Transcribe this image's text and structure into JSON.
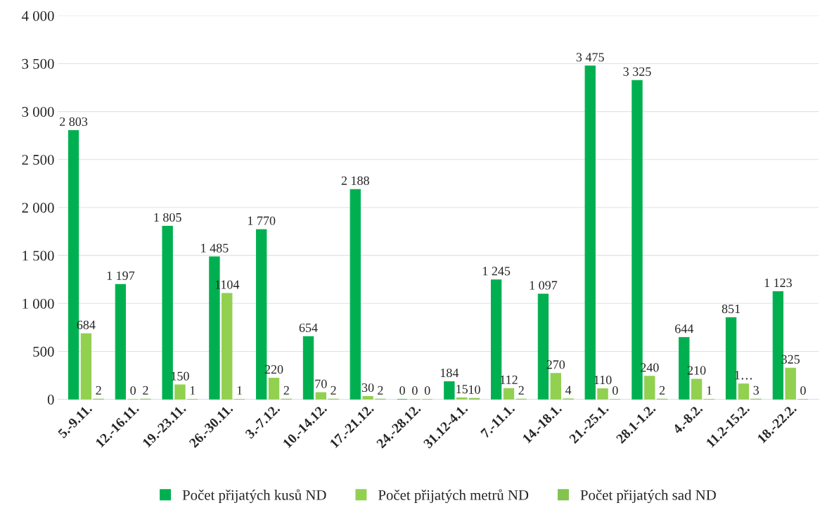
{
  "chart_data": {
    "type": "bar",
    "categories": [
      "5.-9.11.",
      "12.-16.11.",
      "19.-23.11.",
      "26.-30.11.",
      "3.-7.12.",
      "10.-14.12.",
      "17.-21.12.",
      "24.-28.12.",
      "31.12-4.1.",
      "7.-11.1.",
      "14.-18.1.",
      "21.-25.1.",
      "28.1-1.2.",
      "4.-8.2.",
      "11.2-15.2.",
      "18.-22.2."
    ],
    "series": [
      {
        "name": "Počet přijatých kusů ND",
        "color": "#00b050",
        "values": [
          2803,
          1197,
          1805,
          1485,
          1770,
          654,
          2188,
          0,
          184,
          1245,
          1097,
          3475,
          3325,
          644,
          851,
          1123
        ],
        "value_labels": [
          "2 803",
          "1 197",
          "1 805",
          "1 485",
          "1 770",
          "654",
          "2 188",
          "0",
          "184",
          "1 245",
          "1 097",
          "3 475",
          "3 325",
          "644",
          "851",
          "1 123"
        ]
      },
      {
        "name": "Počet přijatých metrů ND",
        "color": "#92d050",
        "values": [
          684,
          0,
          150,
          1104,
          220,
          70,
          30,
          0,
          15,
          112,
          270,
          110,
          240,
          210,
          160,
          325
        ],
        "value_labels": [
          "684",
          "0",
          "150",
          "1104",
          "220",
          "70",
          "30",
          "0",
          "15",
          "112",
          "270",
          "110",
          "240",
          "210",
          "1…",
          "325"
        ]
      },
      {
        "name": "Počet přijatých sad ND",
        "color": "#84c350",
        "values": [
          2,
          2,
          1,
          1,
          2,
          2,
          2,
          0,
          10,
          2,
          4,
          0,
          2,
          1,
          3,
          0
        ],
        "value_labels": [
          "2",
          "2",
          "1",
          "1",
          "2",
          "2",
          "2",
          "0",
          "10",
          "2",
          "4",
          "0",
          "2",
          "1",
          "3",
          "0"
        ]
      }
    ],
    "ylim": [
      0,
      4000
    ],
    "yticks": [
      0,
      {
        "value": 500,
        "label": "500"
      },
      {
        "value": 1000,
        "label": "1 000"
      },
      {
        "value": 1500,
        "label": "1 500"
      },
      {
        "value": 2000,
        "label": "2 000"
      },
      {
        "value": 2500,
        "label": "2 500"
      },
      {
        "value": 3000,
        "label": "3 000"
      },
      {
        "value": 3500,
        "label": "3 500"
      },
      {
        "value": 4000,
        "label": "4 000"
      }
    ],
    "grid": "y",
    "legend": "bottom"
  }
}
